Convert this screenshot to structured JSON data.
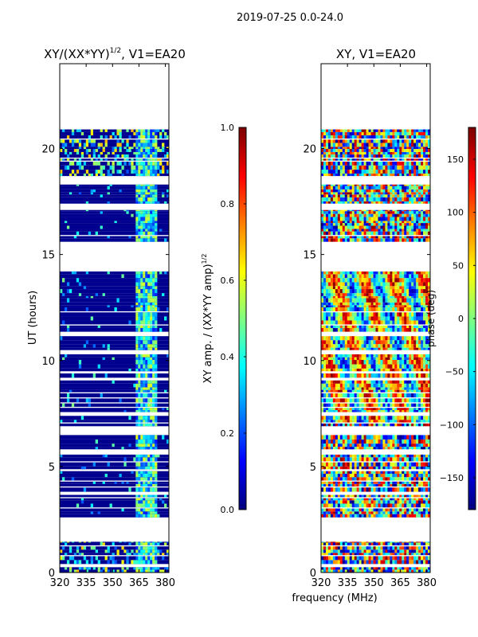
{
  "figure_title": "2019-07-25 0.0-24.0",
  "shared_xlabel": "frequency (MHz)",
  "colors": {
    "nodata": "#ffffff",
    "low": "#00008f",
    "frame": "#000000"
  },
  "chart_data": [
    {
      "type": "heatmap",
      "title_prefix": "XY/(XX*YY)",
      "title_exponent": "1/2",
      "title_suffix": ", V1=EA20",
      "xlabel": "",
      "ylabel": "UT (hours)",
      "xlim": [
        320,
        382
      ],
      "ylim": [
        0,
        24
      ],
      "xticks": [
        320,
        335,
        350,
        365,
        380
      ],
      "yticks": [
        0,
        5,
        10,
        15,
        20
      ],
      "colormap": "jet",
      "colorbar": {
        "label_prefix": "XY amp. / (XX*YY amp)",
        "label_exponent": "1/2",
        "range": [
          0.0,
          1.0
        ],
        "ticks": [
          "0.0",
          "0.2",
          "0.4",
          "0.6",
          "0.8",
          "1.0"
        ],
        "tick_values": [
          0.0,
          0.2,
          0.4,
          0.6,
          0.8,
          1.0
        ]
      },
      "data_segments_ut_hours": [
        [
          0.0,
          0.25
        ],
        [
          0.4,
          1.45
        ],
        [
          2.6,
          6.5
        ],
        [
          6.9,
          14.2
        ],
        [
          15.6,
          17.1
        ],
        [
          17.4,
          18.3
        ],
        [
          18.7,
          20.9
        ]
      ],
      "bright_band_mhz": [
        362,
        375
      ],
      "description_values": {
        "typical_low_freq": 0.02,
        "typical_band": 0.4
      }
    },
    {
      "type": "heatmap",
      "title": "XY, V1=EA20",
      "xlabel": "frequency (MHz)",
      "ylabel": "",
      "xlim": [
        320,
        382
      ],
      "ylim": [
        0,
        24
      ],
      "xticks": [
        320,
        335,
        350,
        365,
        380
      ],
      "yticks": [
        0,
        5,
        10,
        15,
        20
      ],
      "colormap": "jet",
      "colorbar": {
        "label": "phase (deg)",
        "range": [
          -180,
          180
        ],
        "ticks": [
          "−150",
          "−100",
          "−50",
          "0",
          "50",
          "100",
          "150"
        ],
        "tick_values": [
          -150,
          -100,
          -50,
          0,
          50,
          100,
          150
        ]
      },
      "data_segments_ut_hours": [
        [
          0.0,
          0.25
        ],
        [
          0.4,
          1.45
        ],
        [
          2.6,
          6.5
        ],
        [
          6.9,
          14.2
        ],
        [
          15.6,
          17.1
        ],
        [
          17.4,
          18.3
        ],
        [
          18.7,
          20.9
        ]
      ]
    }
  ]
}
